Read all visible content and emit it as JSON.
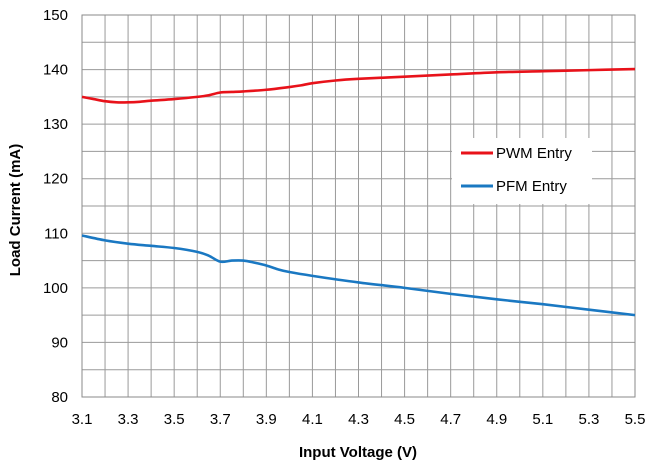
{
  "chart_data": {
    "type": "line",
    "xlabel": "Input Voltage (V)",
    "ylabel": "Load Current (mA)",
    "xlim": [
      3.1,
      5.5
    ],
    "ylim": [
      80,
      150
    ],
    "xticks": [
      3.1,
      3.3,
      3.5,
      3.7,
      3.9,
      4.1,
      4.3,
      4.5,
      4.7,
      4.9,
      5.1,
      5.3,
      5.5
    ],
    "xtick_labels": [
      "3.1",
      "3.3",
      "3.5",
      "3.7",
      "3.9",
      "4.1",
      "4.3",
      "4.5",
      "4.7",
      "4.9",
      "5.1",
      "5.3",
      "5.5"
    ],
    "yticks": [
      80,
      90,
      100,
      110,
      120,
      130,
      140,
      150
    ],
    "ytick_labels": [
      "80",
      "90",
      "100",
      "110",
      "120",
      "130",
      "140",
      "150"
    ],
    "grid": true,
    "legend_position": "right-center",
    "series": [
      {
        "name": "PWM Entry",
        "color": "#e8121a",
        "x": [
          3.1,
          3.15,
          3.2,
          3.25,
          3.3,
          3.35,
          3.4,
          3.5,
          3.6,
          3.65,
          3.7,
          3.75,
          3.8,
          3.9,
          4.0,
          4.05,
          4.1,
          4.2,
          4.3,
          4.5,
          4.7,
          4.9,
          5.1,
          5.3,
          5.5
        ],
        "y": [
          135.0,
          134.6,
          134.2,
          134.0,
          134.0,
          134.1,
          134.3,
          134.6,
          135.0,
          135.3,
          135.8,
          135.9,
          136.0,
          136.3,
          136.8,
          137.1,
          137.5,
          138.0,
          138.3,
          138.7,
          139.1,
          139.5,
          139.7,
          139.9,
          140.1
        ]
      },
      {
        "name": "PFM Entry",
        "color": "#1a78c2",
        "x": [
          3.1,
          3.2,
          3.3,
          3.4,
          3.5,
          3.6,
          3.65,
          3.7,
          3.75,
          3.8,
          3.85,
          3.9,
          3.95,
          4.0,
          4.1,
          4.3,
          4.5,
          4.7,
          4.9,
          5.1,
          5.3,
          5.5
        ],
        "y": [
          109.6,
          108.7,
          108.1,
          107.7,
          107.3,
          106.6,
          105.9,
          104.8,
          105.0,
          105.0,
          104.6,
          104.1,
          103.4,
          102.9,
          102.2,
          101.0,
          100.0,
          98.9,
          97.9,
          97.0,
          96.0,
          95.0
        ]
      }
    ]
  }
}
